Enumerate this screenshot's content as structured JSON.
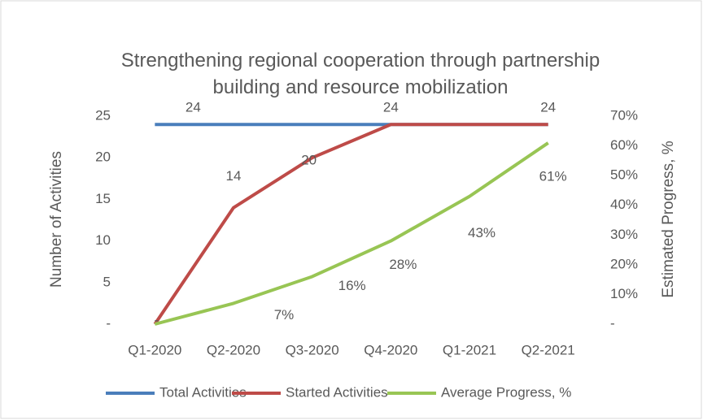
{
  "chart_data": {
    "type": "line",
    "title": "Strengthening regional cooperation through partnership building and resource mobilization",
    "y_label": "Number of Activities",
    "y2_label": "Estimated Progress, %",
    "categories": [
      "Q1-2020",
      "Q2-2020",
      "Q3-2020",
      "Q4-2020",
      "Q1-2021",
      "Q2-2021"
    ],
    "series": [
      {
        "name": "Total Activities",
        "color": "#4a7ebb",
        "values": [
          24,
          24,
          24,
          24,
          24,
          24
        ],
        "value_labels": [
          "24",
          null,
          null,
          null,
          null,
          null
        ]
      },
      {
        "name": "Started Activities",
        "color": "#be4b48",
        "values": [
          0,
          14,
          20,
          24,
          24,
          24
        ],
        "value_labels": [
          "-",
          "14",
          "20",
          "24",
          null,
          "24"
        ]
      },
      {
        "name": "Average Progress, %",
        "color": "#98c554",
        "axis": "y2",
        "values": [
          0,
          7,
          16,
          28,
          43,
          61
        ],
        "value_labels": [
          null,
          "7%",
          "16%",
          "28%",
          "43%",
          "61%"
        ]
      }
    ],
    "ylim": [
      0,
      25
    ],
    "yticks": [
      {
        "value": 0,
        "label": "-"
      },
      5,
      10,
      15,
      20,
      25
    ],
    "y2lim": [
      0,
      70
    ],
    "y2ticks": [
      {
        "value": 0,
        "label": "-"
      },
      {
        "value": 10,
        "label": "10%"
      },
      {
        "value": 20,
        "label": "20%"
      },
      {
        "value": 30,
        "label": "30%"
      },
      {
        "value": 40,
        "label": "40%"
      },
      {
        "value": 50,
        "label": "50%"
      },
      {
        "value": 60,
        "label": "60%"
      },
      {
        "value": 70,
        "label": "70%"
      }
    ],
    "legend": "bottom"
  }
}
